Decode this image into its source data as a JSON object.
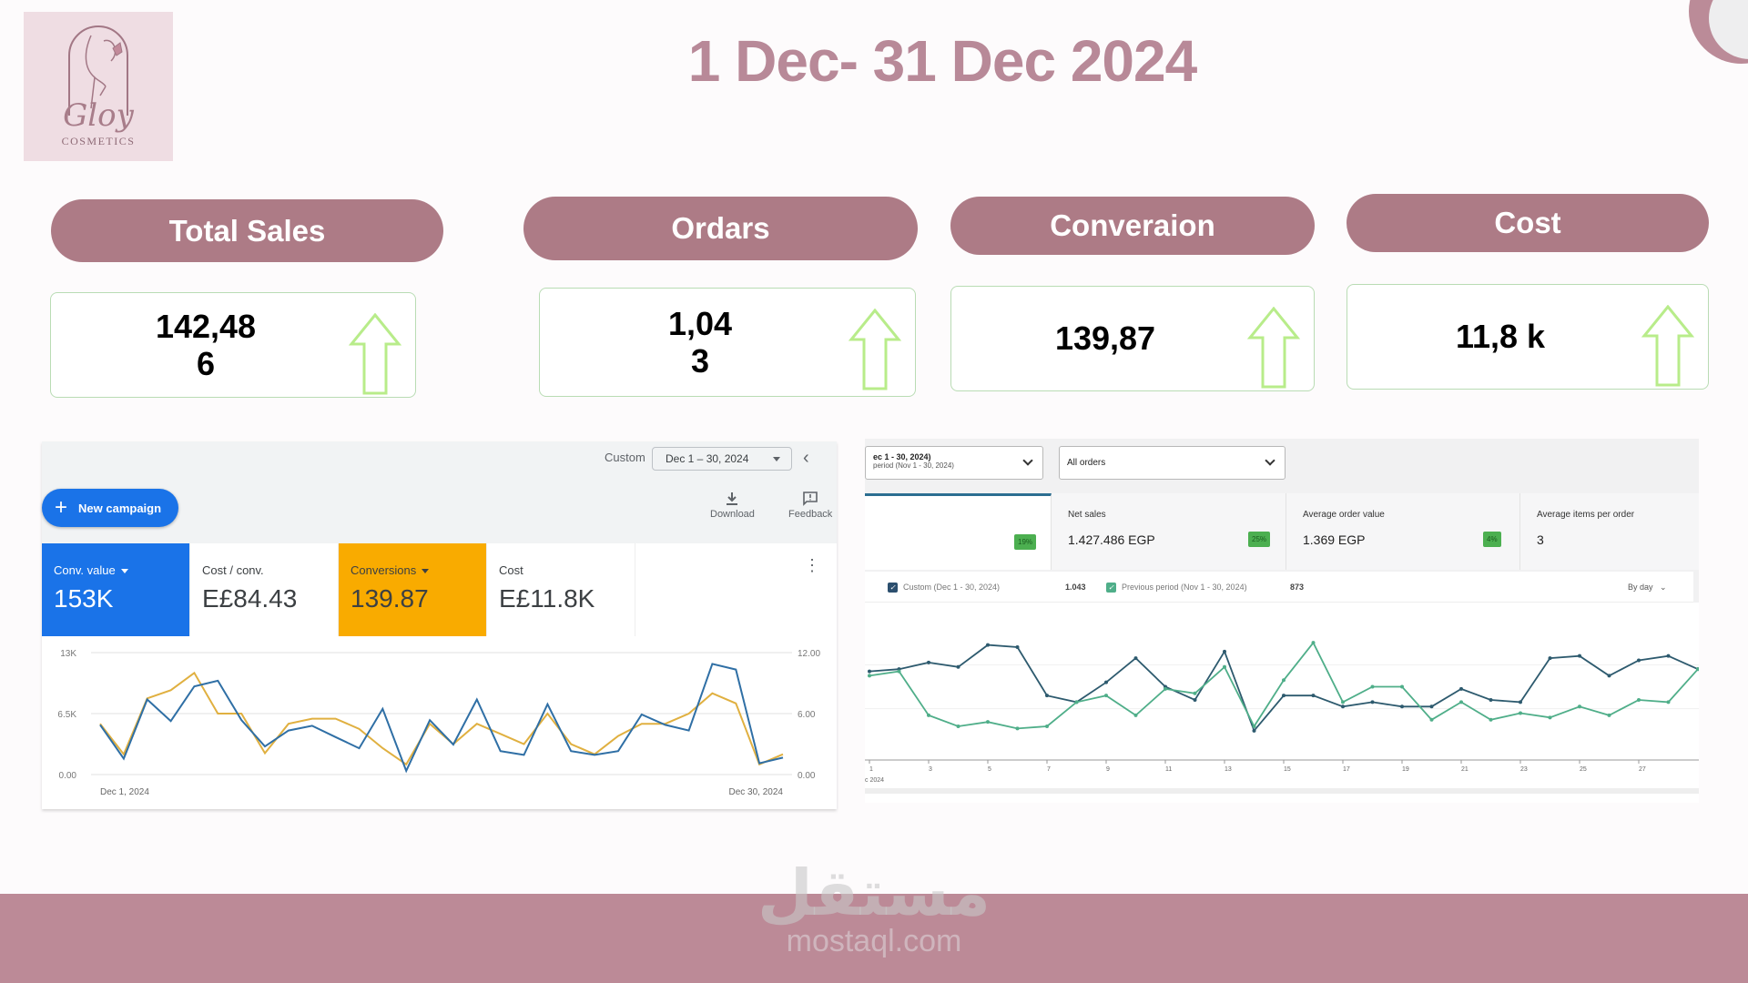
{
  "logo": {
    "brand": "Gloy",
    "subtitle": "COSMETICS"
  },
  "header": {
    "title": "1 Dec- 31 Dec 2024"
  },
  "kpis": [
    {
      "label": "Total Sales",
      "value": "142,486",
      "trend": "up-arrow"
    },
    {
      "label": "Ordars",
      "value": "1,043",
      "trend": "up-arrow"
    },
    {
      "label": "Converaion",
      "value": "139,87",
      "trend": "up-arrow"
    },
    {
      "label": "Cost",
      "value": "11,8 k",
      "trend": "up-arrow"
    }
  ],
  "google_ads": {
    "date_label": "Custom",
    "date_range": "Dec 1 – 30, 2024",
    "new_campaign": "New campaign",
    "download": "Download",
    "feedback": "Feedback",
    "tiles": [
      {
        "label": "Conv. value",
        "value": "153K",
        "color": "#1a73e8"
      },
      {
        "label": "Cost / conv.",
        "value": "E£84.43",
        "color": "#ffffff"
      },
      {
        "label": "Conversions",
        "value": "139.87",
        "color": "#f9ab00"
      },
      {
        "label": "Cost",
        "value": "E£11.8K",
        "color": "#ffffff"
      }
    ]
  },
  "shopify": {
    "date_select_line1": "ec 1 - 30, 2024)",
    "date_select_line2": "period (Nov 1 - 30, 2024)",
    "orders_select": "All orders",
    "metrics": [
      {
        "label": "",
        "value": "",
        "badge": "19%"
      },
      {
        "label": "Net sales",
        "value": "1.427.486 EGP",
        "badge": "25%"
      },
      {
        "label": "Average order value",
        "value": "1.369 EGP",
        "badge": "4%"
      },
      {
        "label": "Average items per order",
        "value": "3",
        "badge": ""
      }
    ],
    "legend": {
      "current_label": "Custom (Dec 1 - 30, 2024)",
      "current_value": "1.043",
      "previous_label": "Previous period (Nov 1 - 30, 2024)",
      "previous_value": "873",
      "granularity": "By day"
    }
  },
  "watermark": {
    "arabic": "مستقل",
    "latin": "mostaql.com"
  },
  "chart_data": [
    {
      "type": "line",
      "title": "Google Ads performance",
      "x_start_label": "Dec 1, 2024",
      "x_end_label": "Dec 30, 2024",
      "x": [
        1,
        2,
        3,
        4,
        5,
        6,
        7,
        8,
        9,
        10,
        11,
        12,
        13,
        14,
        15,
        16,
        17,
        18,
        19,
        20,
        21,
        22,
        23,
        24,
        25,
        26,
        27,
        28,
        29,
        30
      ],
      "left_axis": {
        "ticks": [
          "0.00",
          "6.5K",
          "13K"
        ],
        "range": [
          0,
          13000
        ]
      },
      "right_axis": {
        "ticks": [
          "0.00",
          "6.00",
          "12.00"
        ],
        "range": [
          0,
          12
        ]
      },
      "series": [
        {
          "name": "Conv. value",
          "color": "#2f6fa5",
          "axis": "left",
          "values": [
            5300,
            1700,
            8000,
            5700,
            9400,
            10000,
            5800,
            3000,
            4700,
            5200,
            4000,
            2800,
            7000,
            400,
            5800,
            3200,
            8000,
            2500,
            2100,
            7500,
            2500,
            2100,
            2500,
            6400,
            5300,
            4700,
            11800,
            11200,
            1200,
            1800
          ]
        },
        {
          "name": "Conversions",
          "color": "#e0b040",
          "axis": "right",
          "values": [
            5,
            2,
            7.5,
            8.3,
            10,
            6,
            6,
            2.1,
            5,
            5.5,
            5.5,
            4.5,
            2.6,
            1,
            5,
            3,
            5,
            4,
            3,
            6,
            3,
            2,
            3.8,
            5,
            5,
            6,
            8,
            7,
            1,
            2
          ]
        }
      ]
    },
    {
      "type": "line",
      "title": "Orders by day",
      "x_ticks": [
        "1",
        "3",
        "5",
        "7",
        "9",
        "11",
        "13",
        "15",
        "17",
        "19",
        "21",
        "23",
        "25",
        "27"
      ],
      "x_sub_label": "c 2024",
      "grid": true,
      "series": [
        {
          "name": "Custom (Dec 1 - 30, 2024)",
          "color": "#2d5a6e",
          "values": [
            37,
            38,
            41,
            39,
            49,
            48,
            26,
            23,
            32,
            43,
            30,
            24,
            46,
            10,
            26,
            26,
            21,
            23,
            21,
            21,
            29,
            24,
            23,
            43,
            44,
            35,
            42,
            44,
            38
          ]
        },
        {
          "name": "Previous period (Nov 1 - 30, 2024)",
          "color": "#4fae89",
          "values": [
            35,
            37,
            17,
            12,
            14,
            11,
            12,
            23,
            26,
            17,
            29,
            27,
            39,
            12,
            33,
            50,
            23,
            30,
            30,
            15,
            23,
            15,
            18,
            16,
            21,
            17,
            24,
            23,
            38
          ]
        }
      ]
    }
  ]
}
